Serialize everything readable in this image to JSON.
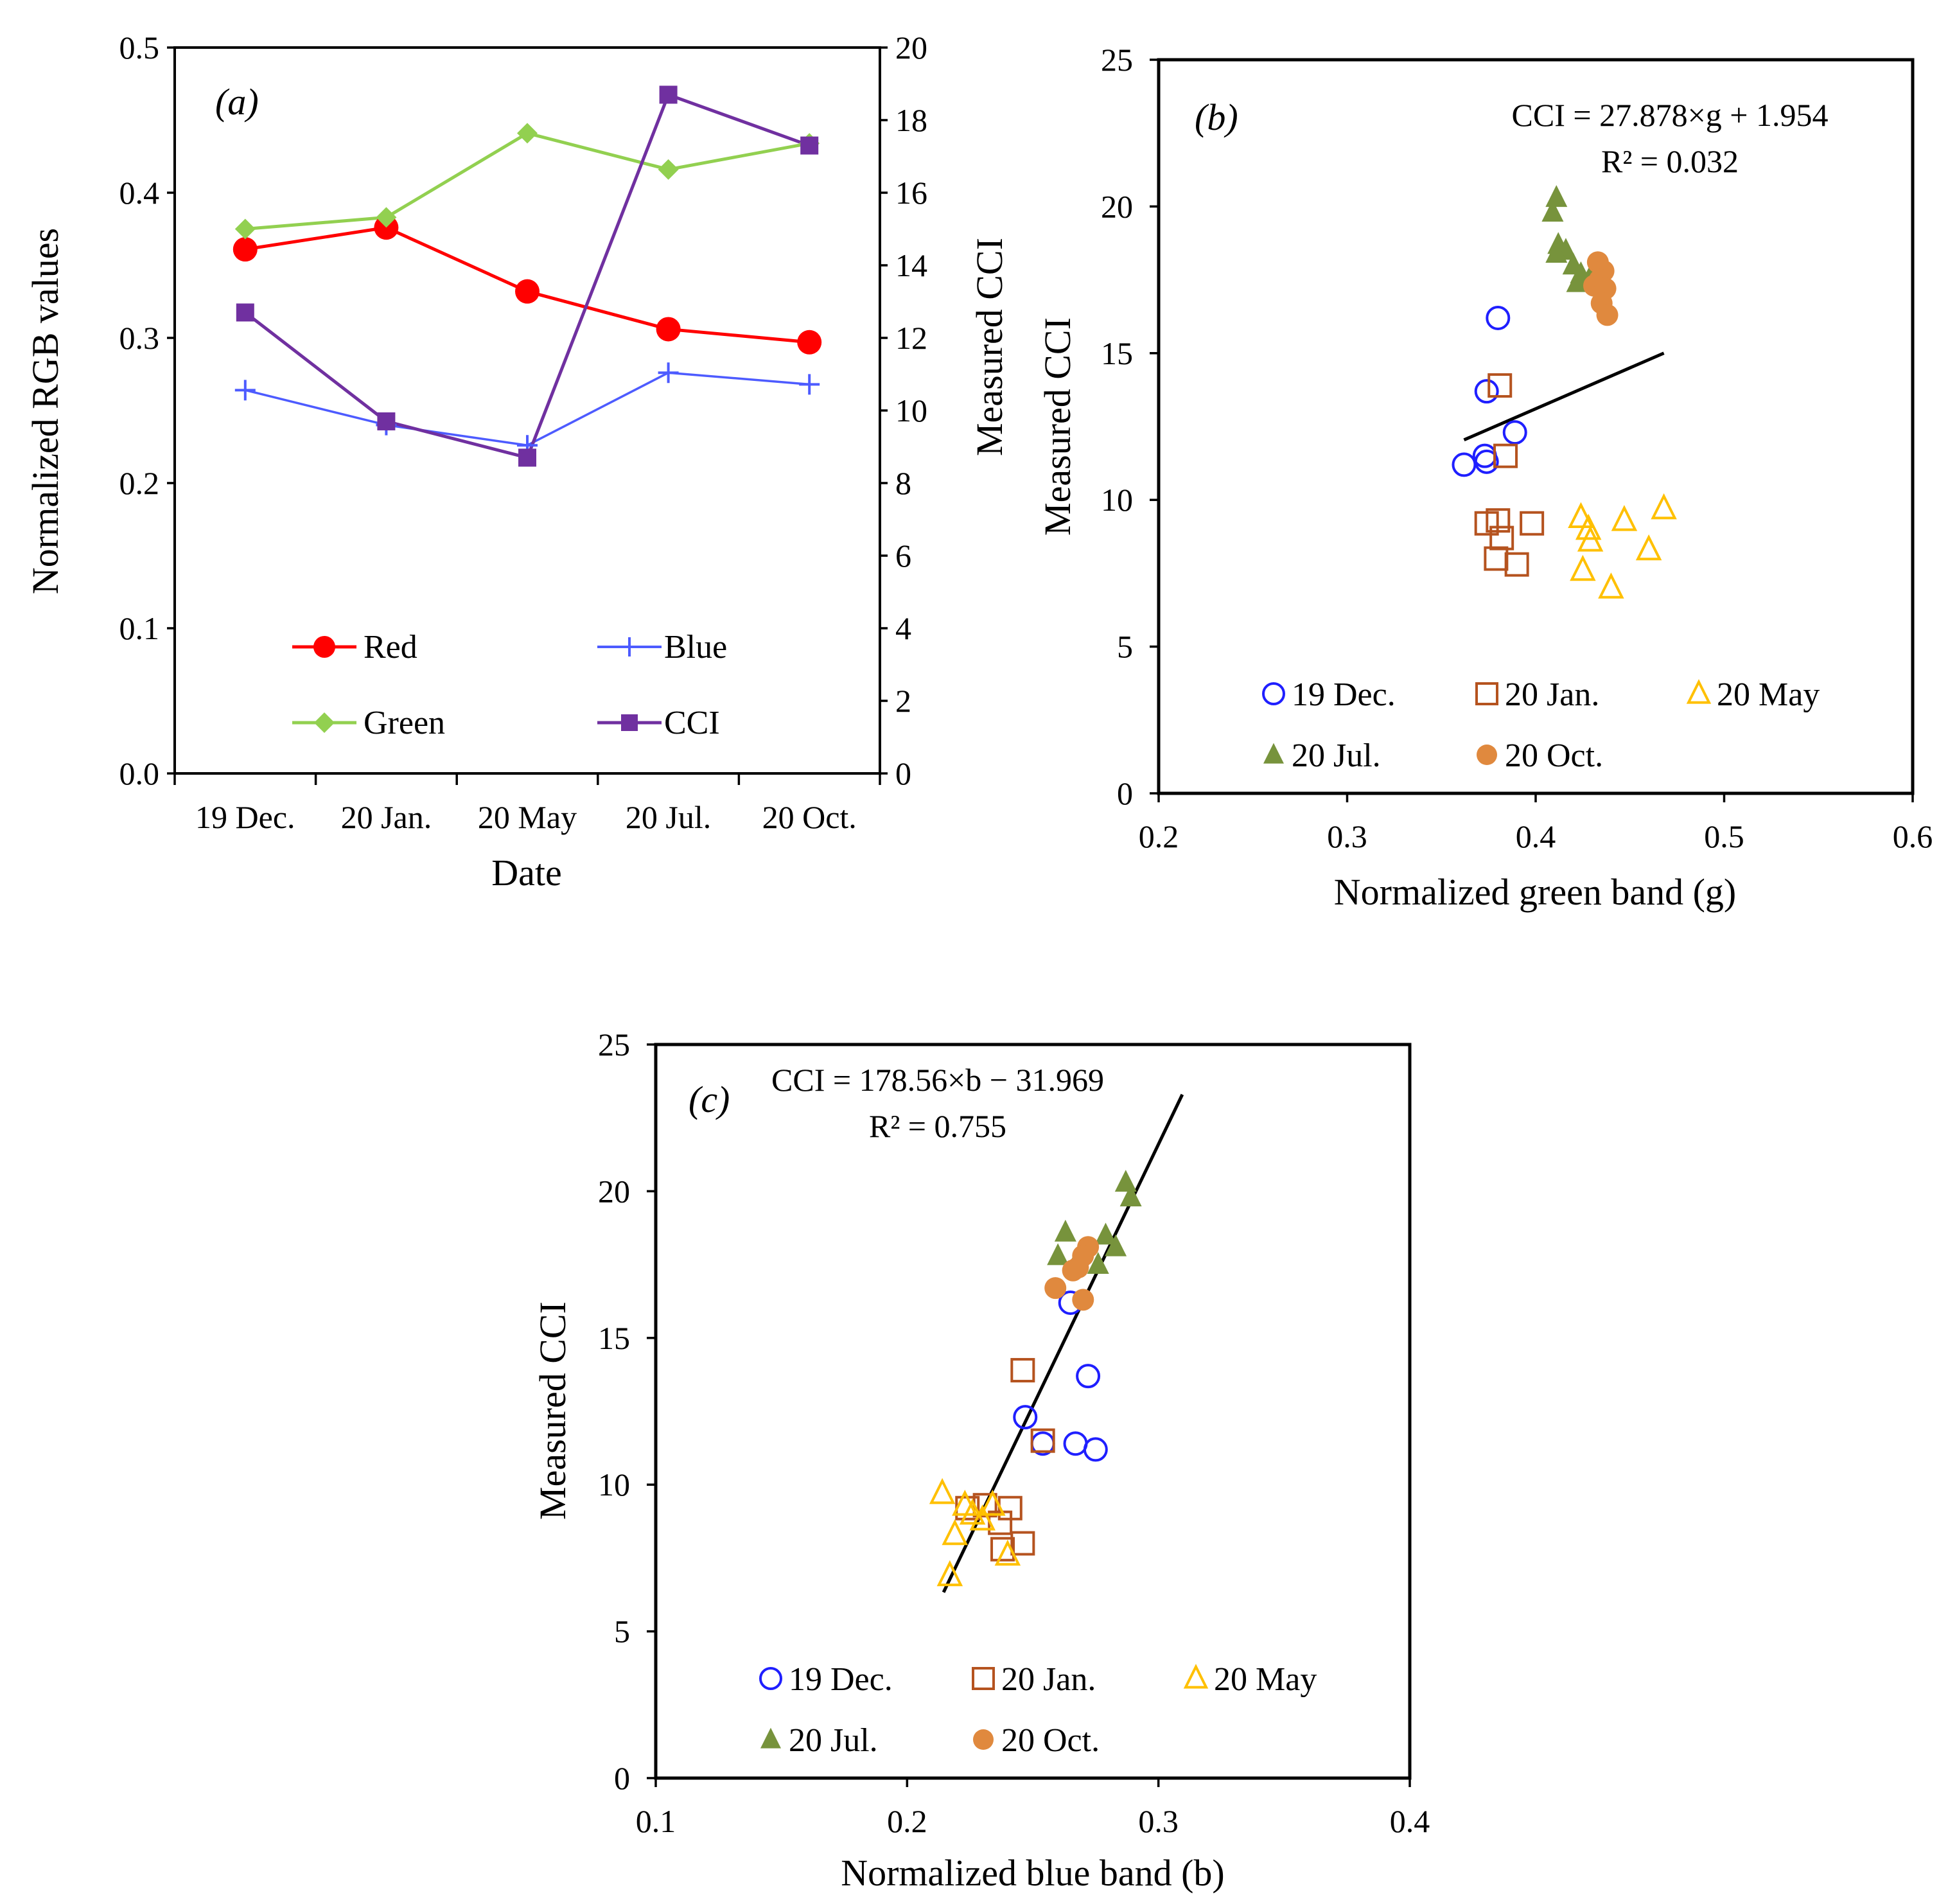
{
  "colors": {
    "red": "#FF0000",
    "blue": "#4D5BFF",
    "green": "#92D050",
    "cci": "#7030A0",
    "dec": "#1F1FFF",
    "jan": "#B5531F",
    "may": "#FFC000",
    "jul": "#77933C",
    "oct": "#E0893E"
  },
  "chart_data": [
    {
      "panel_label": "(a)",
      "type": "line",
      "categories": [
        "19 Dec.",
        "20 Jan.",
        "20 May",
        "20 Jul.",
        "20 Oct."
      ],
      "xlabel": "Date",
      "ylabel": "Normalized RGB values",
      "y2label": "Measured CCI",
      "ylim": [
        0.0,
        0.5
      ],
      "y2lim": [
        0,
        20
      ],
      "yticks": [
        "0.0",
        "0.1",
        "0.2",
        "0.3",
        "0.4",
        "0.5"
      ],
      "y2ticks": [
        "0",
        "2",
        "4",
        "6",
        "8",
        "10",
        "12",
        "14",
        "16",
        "18",
        "20"
      ],
      "legend": {
        "red": "Red",
        "blue": "Blue",
        "green": "Green",
        "cci": "CCI"
      },
      "series": [
        {
          "key": "red",
          "name": "Red",
          "axis": "left",
          "marker": "circle",
          "values": [
            0.361,
            0.376,
            0.332,
            0.306,
            0.297
          ]
        },
        {
          "key": "blue",
          "name": "Blue",
          "axis": "left",
          "marker": "plus",
          "values": [
            0.264,
            0.24,
            0.226,
            0.276,
            0.268
          ]
        },
        {
          "key": "green",
          "name": "Green",
          "axis": "left",
          "marker": "diamond",
          "values": [
            0.375,
            0.383,
            0.441,
            0.416,
            0.434
          ]
        },
        {
          "key": "cci",
          "name": "CCI",
          "axis": "right",
          "marker": "square",
          "values": [
            12.7,
            9.7,
            8.7,
            18.7,
            17.3
          ]
        }
      ]
    },
    {
      "panel_label": "(b)",
      "type": "scatter",
      "xlabel": "Normalized green band (g)",
      "ylabel": "Measured CCI",
      "xlim": [
        0.2,
        0.6
      ],
      "ylim": [
        0,
        25
      ],
      "xticks": [
        "0.2",
        "0.3",
        "0.4",
        "0.5",
        "0.6"
      ],
      "yticks": [
        "0",
        "5",
        "10",
        "15",
        "20",
        "25"
      ],
      "equation": "CCI = 27.878×g  + 1.954",
      "r2": "R² = 0.032",
      "trendline": {
        "slope": 27.878,
        "intercept": 1.954,
        "x_range": [
          0.362,
          0.468
        ]
      },
      "legend": {
        "dec": "19 Dec.",
        "jan": "20 Jan.",
        "may": "20 May",
        "jul": "20 Jul.",
        "oct": "20 Oct."
      },
      "series": [
        {
          "key": "dec",
          "name": "19 Dec.",
          "marker": "circle-open",
          "points": [
            [
              0.38,
              16.2
            ],
            [
              0.374,
              13.7
            ],
            [
              0.389,
              12.3
            ],
            [
              0.373,
              11.5
            ],
            [
              0.374,
              11.3
            ],
            [
              0.362,
              11.2
            ]
          ]
        },
        {
          "key": "jan",
          "name": "20 Jan.",
          "marker": "square-open",
          "points": [
            [
              0.381,
              13.9
            ],
            [
              0.384,
              11.5
            ],
            [
              0.374,
              9.2
            ],
            [
              0.38,
              9.3
            ],
            [
              0.398,
              9.2
            ],
            [
              0.382,
              8.7
            ],
            [
              0.379,
              8.0
            ],
            [
              0.39,
              7.8
            ]
          ]
        },
        {
          "key": "may",
          "name": "20 May",
          "marker": "triangle-open",
          "points": [
            [
              0.468,
              9.7
            ],
            [
              0.424,
              9.4
            ],
            [
              0.447,
              9.3
            ],
            [
              0.428,
              9.0
            ],
            [
              0.429,
              8.6
            ],
            [
              0.46,
              8.3
            ],
            [
              0.425,
              7.6
            ],
            [
              0.44,
              7.0
            ]
          ]
        },
        {
          "key": "jul",
          "name": "20 Jul.",
          "marker": "triangle-filled",
          "points": [
            [
              0.411,
              20.3
            ],
            [
              0.409,
              19.8
            ],
            [
              0.412,
              18.7
            ],
            [
              0.416,
              18.5
            ],
            [
              0.411,
              18.4
            ],
            [
              0.42,
              18.0
            ],
            [
              0.424,
              17.7
            ],
            [
              0.422,
              17.4
            ],
            [
              0.429,
              17.6
            ]
          ]
        },
        {
          "key": "oct",
          "name": "20 Oct.",
          "marker": "circle-filled",
          "points": [
            [
              0.433,
              18.1
            ],
            [
              0.436,
              17.8
            ],
            [
              0.434,
              17.5
            ],
            [
              0.431,
              17.3
            ],
            [
              0.437,
              17.2
            ],
            [
              0.435,
              16.7
            ],
            [
              0.438,
              16.3
            ]
          ]
        }
      ]
    },
    {
      "panel_label": "(c)",
      "type": "scatter",
      "xlabel": "Normalized blue band (b)",
      "ylabel": "Measured CCI",
      "xlim": [
        0.1,
        0.4
      ],
      "ylim": [
        0,
        25
      ],
      "xticks": [
        "0.1",
        "0.2",
        "0.3",
        "0.4"
      ],
      "yticks": [
        "0",
        "5",
        "10",
        "15",
        "20",
        "25"
      ],
      "equation": "CCI = 178.56×b  − 31.969",
      "r2": "R² = 0.755",
      "trendline": {
        "slope": 178.56,
        "intercept": -31.969,
        "x_range": [
          0.2145,
          0.3095
        ]
      },
      "legend": {
        "dec": "19 Dec.",
        "jan": "20 Jan.",
        "may": "20 May",
        "jul": "20 Jul.",
        "oct": "20 Oct."
      },
      "series": [
        {
          "key": "dec",
          "name": "19 Dec.",
          "marker": "circle-open",
          "points": [
            [
              0.265,
              16.2
            ],
            [
              0.272,
              13.7
            ],
            [
              0.247,
              12.3
            ],
            [
              0.254,
              11.4
            ],
            [
              0.267,
              11.4
            ],
            [
              0.275,
              11.2
            ]
          ]
        },
        {
          "key": "jan",
          "name": "20 Jan.",
          "marker": "square-open",
          "points": [
            [
              0.246,
              13.9
            ],
            [
              0.254,
              11.5
            ],
            [
              0.224,
              9.2
            ],
            [
              0.231,
              9.3
            ],
            [
              0.241,
              9.2
            ],
            [
              0.237,
              8.7
            ],
            [
              0.246,
              8.0
            ],
            [
              0.238,
              7.8
            ]
          ]
        },
        {
          "key": "may",
          "name": "20 May",
          "marker": "triangle-open",
          "points": [
            [
              0.214,
              9.7
            ],
            [
              0.223,
              9.3
            ],
            [
              0.234,
              9.3
            ],
            [
              0.226,
              9.0
            ],
            [
              0.23,
              8.8
            ],
            [
              0.219,
              8.3
            ],
            [
              0.24,
              7.6
            ],
            [
              0.217,
              6.9
            ]
          ]
        },
        {
          "key": "jul",
          "name": "20 Jul.",
          "marker": "triangle-filled",
          "points": [
            [
              0.287,
              20.3
            ],
            [
              0.289,
              19.8
            ],
            [
              0.263,
              18.6
            ],
            [
              0.279,
              18.5
            ],
            [
              0.283,
              18.1
            ],
            [
              0.26,
              17.8
            ],
            [
              0.268,
              17.7
            ],
            [
              0.276,
              17.5
            ]
          ]
        },
        {
          "key": "oct",
          "name": "20 Oct.",
          "marker": "circle-filled",
          "points": [
            [
              0.272,
              18.1
            ],
            [
              0.27,
              17.8
            ],
            [
              0.268,
              17.4
            ],
            [
              0.266,
              17.3
            ],
            [
              0.259,
              16.7
            ],
            [
              0.27,
              16.3
            ]
          ]
        }
      ]
    }
  ]
}
